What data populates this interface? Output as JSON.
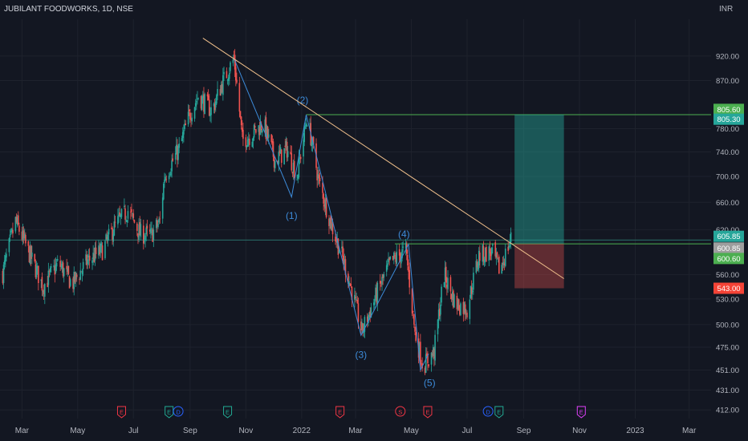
{
  "header": {
    "symbol": "JUBILANT FOODWORKS, 1D, NSE",
    "currency": "INR"
  },
  "chart_data": {
    "type": "candlestick",
    "title": "JUBILANT FOODWORKS, 1D, NSE",
    "y_scale": "log",
    "ylim": [
      404,
      1000
    ],
    "y_ticks": [
      "920.00",
      "870.00",
      "780.00",
      "740.00",
      "700.00",
      "660.00",
      "620.00",
      "560.00",
      "530.00",
      "500.00",
      "475.00",
      "451.00",
      "431.00",
      "412.00"
    ],
    "x_ticks": [
      {
        "label": "Mar",
        "date": "2021-03-01"
      },
      {
        "label": "May",
        "date": "2021-05-01"
      },
      {
        "label": "Jul",
        "date": "2021-07-01"
      },
      {
        "label": "Sep",
        "date": "2021-09-01"
      },
      {
        "label": "Nov",
        "date": "2021-11-01"
      },
      {
        "label": "2022",
        "date": "2022-01-01"
      },
      {
        "label": "Mar",
        "date": "2022-03-01"
      },
      {
        "label": "May",
        "date": "2022-05-01"
      },
      {
        "label": "Jul",
        "date": "2022-07-01"
      },
      {
        "label": "Sep",
        "date": "2022-09-01"
      },
      {
        "label": "Nov",
        "date": "2022-11-01"
      },
      {
        "label": "2023",
        "date": "2023-01-01"
      },
      {
        "label": "Mar",
        "date": "2023-03-01"
      }
    ],
    "x_range": [
      "2021-02-05",
      "2023-03-25"
    ],
    "price_path": [
      [
        "2021-02-08",
        562
      ],
      [
        "2021-02-22",
        632
      ],
      [
        "2021-03-08",
        590
      ],
      [
        "2021-03-24",
        545
      ],
      [
        "2021-04-10",
        575
      ],
      [
        "2021-04-25",
        548
      ],
      [
        "2021-05-12",
        578
      ],
      [
        "2021-05-28",
        592
      ],
      [
        "2021-06-12",
        628
      ],
      [
        "2021-06-25",
        648
      ],
      [
        "2021-07-08",
        615
      ],
      [
        "2021-07-20",
        612
      ],
      [
        "2021-07-30",
        632
      ],
      [
        "2021-08-04",
        700
      ],
      [
        "2021-08-20",
        745
      ],
      [
        "2021-09-01",
        808
      ],
      [
        "2021-09-10",
        840
      ],
      [
        "2021-09-25",
        812
      ],
      [
        "2021-10-05",
        860
      ],
      [
        "2021-10-19",
        915
      ],
      [
        "2021-10-28",
        760
      ],
      [
        "2021-11-08",
        770
      ],
      [
        "2021-11-20",
        790
      ],
      [
        "2021-12-03",
        725
      ],
      [
        "2021-12-16",
        745
      ],
      [
        "2021-12-27",
        700
      ],
      [
        "2022-01-07",
        800
      ],
      [
        "2022-01-20",
        690
      ],
      [
        "2022-02-03",
        625
      ],
      [
        "2022-02-18",
        570
      ],
      [
        "2022-03-08",
        492
      ],
      [
        "2022-03-22",
        530
      ],
      [
        "2022-04-08",
        575
      ],
      [
        "2022-04-25",
        592
      ],
      [
        "2022-05-05",
        490
      ],
      [
        "2022-05-14",
        455
      ],
      [
        "2022-05-26",
        470
      ],
      [
        "2022-06-06",
        560
      ],
      [
        "2022-06-18",
        525
      ],
      [
        "2022-07-01",
        518
      ],
      [
        "2022-07-14",
        585
      ],
      [
        "2022-07-28",
        590
      ],
      [
        "2022-08-06",
        565
      ],
      [
        "2022-08-18",
        608
      ]
    ],
    "wave_path": [
      [
        "2021-10-19",
        915
      ],
      [
        "2021-12-21",
        668
      ],
      [
        "2022-01-06",
        805
      ],
      [
        "2022-03-07",
        488
      ],
      [
        "2022-04-28",
        600
      ],
      [
        "2022-05-11",
        451
      ],
      [
        "2022-05-20",
        468
      ]
    ],
    "wave_labels": [
      {
        "text": "(1)",
        "date": "2021-12-21",
        "price": 640
      },
      {
        "text": "(2)",
        "date": "2022-01-02",
        "price": 832
      },
      {
        "text": "(3)",
        "date": "2022-03-07",
        "price": 467
      },
      {
        "text": "(4)",
        "date": "2022-04-23",
        "price": 614
      },
      {
        "text": "(5)",
        "date": "2022-05-21",
        "price": 438
      }
    ],
    "trendline": {
      "from": [
        "2021-09-15",
        958
      ],
      "to": [
        "2022-10-15",
        555
      ]
    },
    "levels": [
      {
        "price": 805.3,
        "from": "2022-01-06",
        "to": "2023-03-25",
        "color": "#4caf50"
      },
      {
        "price": 600.6,
        "from": "2022-04-13",
        "to": "2023-03-25",
        "color": "#4caf50"
      },
      {
        "price": 605.85,
        "from": "2021-02-05",
        "to": "2023-03-25",
        "color": "#2a6f6a"
      }
    ],
    "position": {
      "entry": 600.85,
      "target": 805.6,
      "stop": 543.0,
      "from": "2022-08-22",
      "to": "2022-10-15"
    },
    "price_labels": [
      {
        "text": "805.60",
        "price": 815,
        "bg": "#4caf50",
        "fg": "#ffffff"
      },
      {
        "text": "805.30",
        "price": 797,
        "bg": "#26a69a",
        "fg": "#ffffff"
      },
      {
        "text": "605.85",
        "price": 611,
        "bg": "#26a69a",
        "fg": "#ffffff"
      },
      {
        "text": "600.85",
        "price": 595,
        "bg": "#9e9e9e",
        "fg": "#ffffff"
      },
      {
        "text": "600.60",
        "price": 581,
        "bg": "#4caf50",
        "fg": "#ffffff"
      },
      {
        "text": "543.00",
        "price": 543,
        "bg": "#f44336",
        "fg": "#ffffff"
      }
    ],
    "events": [
      {
        "letter": "E",
        "date": "2021-06-18",
        "color": "#f23645"
      },
      {
        "letter": "E",
        "date": "2021-08-09",
        "color": "#22ab94"
      },
      {
        "letter": "D",
        "date": "2021-08-19",
        "color": "#2962ff"
      },
      {
        "letter": "E",
        "date": "2021-10-12",
        "color": "#22ab94"
      },
      {
        "letter": "E",
        "date": "2022-02-12",
        "color": "#f23645"
      },
      {
        "letter": "S",
        "date": "2022-04-19",
        "color": "#f23645"
      },
      {
        "letter": "E",
        "date": "2022-05-19",
        "color": "#f23645"
      },
      {
        "letter": "D",
        "date": "2022-07-24",
        "color": "#2962ff"
      },
      {
        "letter": "E",
        "date": "2022-08-05",
        "color": "#22ab94"
      },
      {
        "letter": "E",
        "date": "2022-11-03",
        "color": "#e040fb"
      }
    ],
    "colors": {
      "up": "#26a69a",
      "down": "#ef5350",
      "background": "#131722",
      "text": "#b2b5be",
      "trendline": "#f0c08c",
      "wave": "#3d8bd9",
      "grid": "#1e222d"
    }
  }
}
